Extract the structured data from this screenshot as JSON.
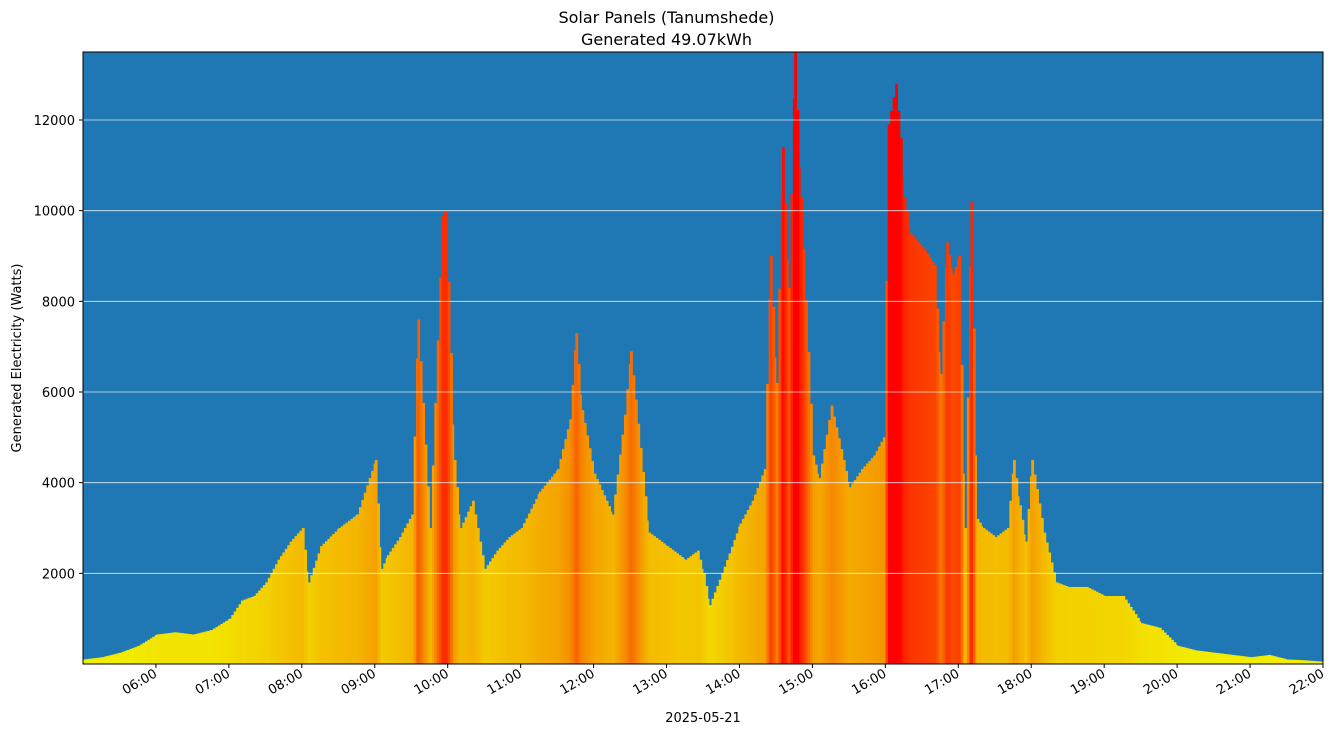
{
  "chart_data": {
    "type": "bar",
    "title": "Solar Panels (Tanumshede)",
    "subtitle": "Generated 49.07kWh",
    "xlabel": "2025-05-21",
    "ylabel": "Generated Electricity (Watts)",
    "x_ticks": [
      "06:00",
      "07:00",
      "08:00",
      "09:00",
      "10:00",
      "11:00",
      "12:00",
      "13:00",
      "14:00",
      "15:00",
      "16:00",
      "17:00",
      "18:00",
      "19:00",
      "20:00",
      "21:00",
      "22:00"
    ],
    "y_ticks": [
      2000,
      4000,
      6000,
      8000,
      10000,
      12000
    ],
    "xlim": [
      "05:00",
      "22:00"
    ],
    "ylim": [
      0,
      13500
    ],
    "grid": "horizontal",
    "colors": {
      "background": "#1f77b4",
      "low": "#f2f000",
      "mid": "#f59a00",
      "high": "#ff0000",
      "grid": "#ffffff"
    },
    "series": [
      {
        "x": [
          "05:00",
          "05:15",
          "05:30",
          "05:45",
          "06:00",
          "06:15",
          "06:30",
          "06:45",
          "07:00",
          "07:10",
          "07:20",
          "07:30",
          "07:40",
          "07:50",
          "08:00",
          "08:05",
          "08:15",
          "08:30",
          "08:45",
          "09:00",
          "09:05",
          "09:10",
          "09:20",
          "09:30",
          "09:35",
          "09:45",
          "09:55",
          "09:58",
          "10:05",
          "10:10",
          "10:20",
          "10:30",
          "10:40",
          "10:50",
          "11:00",
          "11:15",
          "11:30",
          "11:40",
          "11:45",
          "11:50",
          "12:00",
          "12:15",
          "12:25",
          "12:30",
          "12:45",
          "13:00",
          "13:15",
          "13:25",
          "13:30",
          "13:35",
          "13:45",
          "14:00",
          "14:10",
          "14:20",
          "14:25",
          "14:30",
          "14:35",
          "14:40",
          "14:45",
          "14:50",
          "15:00",
          "15:05",
          "15:15",
          "15:30",
          "15:40",
          "15:50",
          "15:58",
          "16:02",
          "16:08",
          "16:12",
          "16:15",
          "16:20",
          "16:30",
          "16:40",
          "16:45",
          "16:50",
          "16:55",
          "17:00",
          "17:05",
          "17:10",
          "17:15",
          "17:20",
          "17:30",
          "17:40",
          "17:45",
          "17:50",
          "17:55",
          "18:00",
          "18:10",
          "18:20",
          "18:30",
          "18:45",
          "19:00",
          "19:15",
          "19:30",
          "19:45",
          "20:00",
          "20:15",
          "20:30",
          "20:45",
          "21:00",
          "21:15",
          "21:30",
          "21:45",
          "22:00"
        ],
        "values": [
          100,
          150,
          250,
          400,
          650,
          700,
          650,
          750,
          1000,
          1400,
          1500,
          1800,
          2300,
          2700,
          3000,
          1800,
          2600,
          3000,
          3300,
          4500,
          2100,
          2400,
          2800,
          3300,
          7600,
          3000,
          9900,
          10000,
          4500,
          3000,
          3600,
          2100,
          2500,
          2800,
          3000,
          3800,
          4300,
          5400,
          7300,
          5600,
          4200,
          3300,
          5500,
          6900,
          2900,
          2600,
          2300,
          2500,
          2000,
          1300,
          2000,
          3100,
          3600,
          4300,
          9000,
          6200,
          11400,
          8300,
          13500,
          10300,
          4600,
          4100,
          5700,
          3900,
          4300,
          4600,
          5000,
          11900,
          12800,
          11600,
          10300,
          9500,
          9200,
          8800,
          6400,
          9300,
          8600,
          9000,
          3000,
          10200,
          3200,
          3000,
          2800,
          3000,
          4500,
          3500,
          2700,
          4500,
          2900,
          1800,
          1700,
          1700,
          1500,
          1500,
          900,
          800,
          400,
          300,
          250,
          200,
          150,
          200,
          100,
          80,
          50
        ]
      }
    ]
  }
}
